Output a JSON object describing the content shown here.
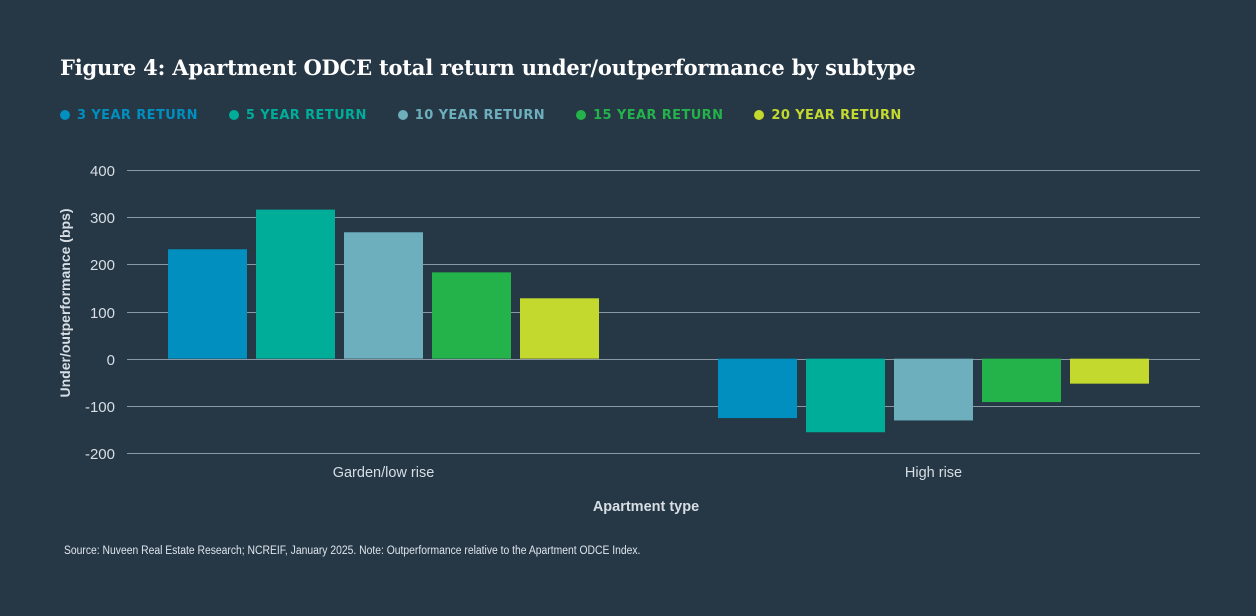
{
  "chart_data": {
    "type": "bar",
    "title": "Figure 4: Apartment ODCE total return under/outperformance by subtype",
    "xlabel": "Apartment type",
    "ylabel": "Under/outperformance (bps)",
    "ylim": [
      -200,
      400
    ],
    "yticks": [
      400,
      300,
      200,
      100,
      0,
      -100,
      -200
    ],
    "grid": true,
    "legend_position": "top-left",
    "categories": [
      "Garden/low rise",
      "High rise"
    ],
    "series": [
      {
        "name": "3 YEAR RETURN",
        "color": "#008FBE",
        "values": [
          232,
          -126
        ]
      },
      {
        "name": "5 YEAR RETURN",
        "color": "#00AD99",
        "values": [
          316,
          -156
        ]
      },
      {
        "name": "10 YEAR RETURN",
        "color": "#6DAFBD",
        "values": [
          268,
          -131
        ]
      },
      {
        "name": "15 YEAR RETURN",
        "color": "#24B34A",
        "values": [
          183,
          -92
        ]
      },
      {
        "name": "20 YEAR RETURN",
        "color": "#C4D92D",
        "values": [
          128,
          -53
        ]
      }
    ]
  },
  "source_note": "Source: Nuveen Real Estate Research; NCREIF, January 2025. Note: Outperformance relative to the Apartment ODCE Index.",
  "colors": {
    "background": "#263746",
    "grid": "#8a98a4",
    "axis_text": "#d7dee4"
  }
}
